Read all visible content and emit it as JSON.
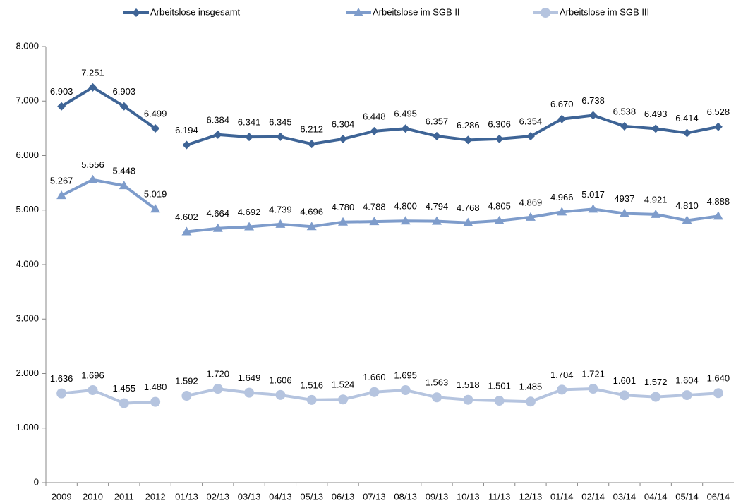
{
  "chart_data": {
    "type": "line",
    "categories": [
      "2009",
      "2010",
      "2011",
      "2012",
      "01/13",
      "02/13",
      "03/13",
      "04/13",
      "05/13",
      "06/13",
      "07/13",
      "08/13",
      "09/13",
      "10/13",
      "11/13",
      "12/13",
      "01/14",
      "02/14",
      "03/14",
      "04/14",
      "05/14",
      "06/14"
    ],
    "line_break_after": [
      3
    ],
    "series": [
      {
        "name": "Arbeitslose insgesamt",
        "color": "#3e6496",
        "marker": "diamond",
        "values": [
          6903,
          7251,
          6903,
          6499,
          6194,
          6384,
          6341,
          6345,
          6212,
          6304,
          6448,
          6495,
          6357,
          6286,
          6306,
          6354,
          6670,
          6738,
          6538,
          6493,
          6414,
          6528
        ],
        "value_labels": [
          "6.903",
          "7.251",
          "6.903",
          "6.499",
          "6.194",
          "6.384",
          "6.341",
          "6.345",
          "6.212",
          "6.304",
          "6.448",
          "6.495",
          "6.357",
          "6.286",
          "6.306",
          "6.354",
          "6.670",
          "6.738",
          "6.538",
          "6.493",
          "6.414",
          "6.528"
        ]
      },
      {
        "name": "Arbeitslose im SGB II",
        "color": "#7e9ccb",
        "marker": "triangle",
        "values": [
          5267,
          5556,
          5448,
          5019,
          4602,
          4664,
          4692,
          4739,
          4696,
          4780,
          4788,
          4800,
          4794,
          4768,
          4805,
          4869,
          4966,
          5017,
          4937,
          4921,
          4810,
          4888
        ],
        "value_labels": [
          "5.267",
          "5.556",
          "5.448",
          "5.019",
          "4.602",
          "4.664",
          "4.692",
          "4.739",
          "4.696",
          "4.780",
          "4.788",
          "4.800",
          "4.794",
          "4.768",
          "4.805",
          "4.869",
          "4.966",
          "5.017",
          "4937",
          "4.921",
          "4.810",
          "4.888"
        ]
      },
      {
        "name": "Arbeitslose im SGB III",
        "color": "#b5c4df",
        "marker": "circle",
        "values": [
          1636,
          1696,
          1455,
          1480,
          1592,
          1720,
          1649,
          1606,
          1516,
          1524,
          1660,
          1695,
          1563,
          1518,
          1501,
          1485,
          1704,
          1721,
          1601,
          1572,
          1604,
          1640
        ],
        "value_labels": [
          "1.636",
          "1.696",
          "1.455",
          "1.480",
          "1.592",
          "1.720",
          "1.649",
          "1.606",
          "1.516",
          "1.524",
          "1.660",
          "1.695",
          "1.563",
          "1.518",
          "1.501",
          "1.485",
          "1.704",
          "1.721",
          "1.601",
          "1.572",
          "1.604",
          "1.640"
        ]
      }
    ],
    "ylim": [
      0,
      8000
    ],
    "yticks": [
      0,
      {
        "value": 1000,
        "label": "1.000"
      },
      {
        "value": 2000,
        "label": "2.000"
      },
      {
        "value": 3000,
        "label": "3.000"
      },
      {
        "value": 4000,
        "label": "4.000"
      },
      {
        "value": 5000,
        "label": "5.000"
      },
      {
        "value": 6000,
        "label": "6.000"
      },
      {
        "value": 7000,
        "label": "7.000"
      },
      {
        "value": 8000,
        "label": "8.000"
      }
    ],
    "grid": false,
    "legend": "top"
  }
}
